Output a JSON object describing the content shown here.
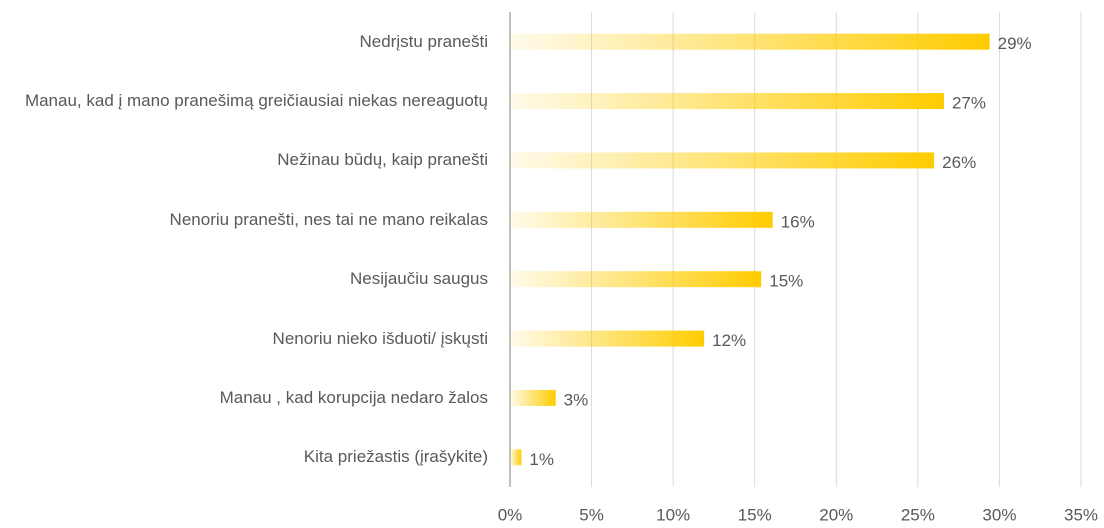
{
  "chart_data": {
    "type": "barh",
    "categories": [
      "Nedrįstu pranešti",
      "Manau, kad į mano pranešimą greičiausiai niekas nereaguotų",
      "Nežinau būdų, kaip pranešti",
      "Nenoriu pranešti, nes tai ne mano reikalas",
      "Nesijaučiu saugus",
      "Nenoriu nieko išduoti/ įskųsti",
      "Manau , kad korupcija nedaro žalos",
      "Kita priežastis (įrašykite)"
    ],
    "values": [
      29.4,
      26.6,
      26.0,
      16.1,
      15.4,
      11.9,
      2.8,
      0.7
    ],
    "value_labels": [
      "29%",
      "27%",
      "26%",
      "16%",
      "15%",
      "12%",
      "3%",
      "1%"
    ],
    "color": "#ffcc00",
    "xlim": [
      0,
      35
    ],
    "xticks": [
      {
        "value": 0,
        "label": "0%"
      },
      {
        "value": 5,
        "label": "5%"
      },
      {
        "value": 10,
        "label": "10%"
      },
      {
        "value": 15,
        "label": "15%"
      },
      {
        "value": 20,
        "label": "20%"
      },
      {
        "value": 25,
        "label": "25%"
      },
      {
        "value": 30,
        "label": "30%"
      },
      {
        "value": 35,
        "label": "35%"
      }
    ],
    "grid": true
  }
}
